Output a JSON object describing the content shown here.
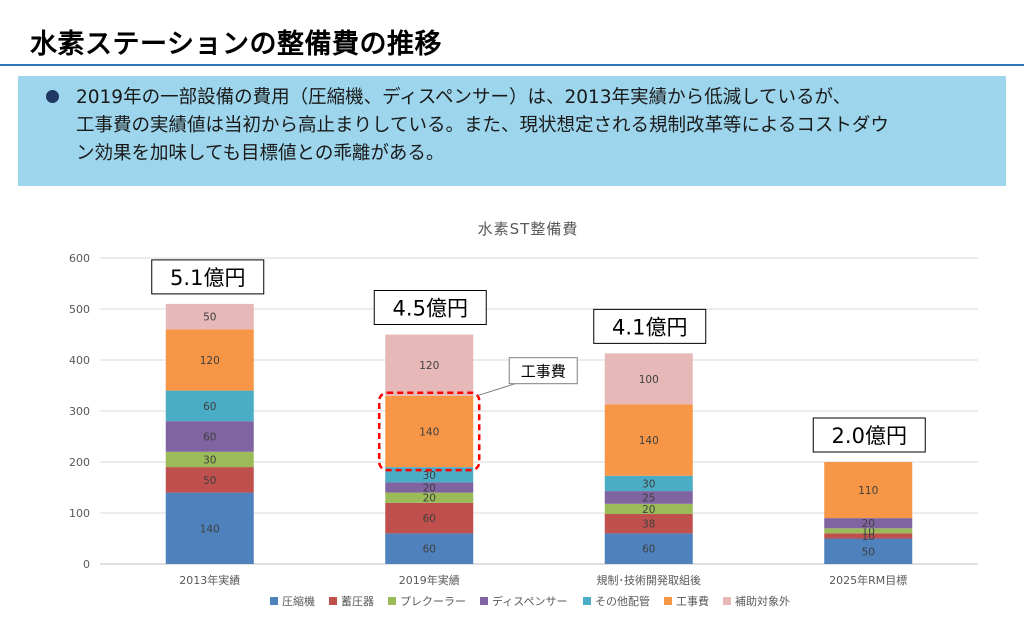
{
  "page": {
    "title": "水素ステーションの整備費の推移",
    "summary_lines": [
      "2019年の一部設備の費用（圧縮機、ディスペンサー）は、2013年実績から低減しているが、",
      "工事費の実績値は当初から高止まりしている。また、現状想定される規制改革等によるコストダウ",
      "ン効果を加味しても目標値との乖離がある。"
    ]
  },
  "chart_data": {
    "type": "bar",
    "stacked": true,
    "title": "水素ST整備費",
    "categories": [
      "2013年実績",
      "2019年実績",
      "規制･技術開発取組後",
      "2025年RM目標"
    ],
    "ylim": [
      0,
      600
    ],
    "yticks": [
      0,
      100,
      200,
      300,
      400,
      500,
      600
    ],
    "grid": true,
    "legend_position": "bottom",
    "series": [
      {
        "name": "圧縮機",
        "color": "#4f81bd",
        "values": [
          140,
          60,
          60,
          50
        ]
      },
      {
        "name": "蓄圧器",
        "color": "#c0504d",
        "values": [
          50,
          60,
          38,
          10
        ]
      },
      {
        "name": "プレクーラー",
        "color": "#9bbb59",
        "values": [
          30,
          20,
          20,
          10
        ]
      },
      {
        "name": "ディスペンサー",
        "color": "#8064a2",
        "values": [
          60,
          20,
          25,
          20
        ]
      },
      {
        "name": "その他配管",
        "color": "#4bacc6",
        "values": [
          60,
          30,
          30,
          0
        ]
      },
      {
        "name": "工事費",
        "color": "#f79646",
        "values": [
          120,
          140,
          140,
          110
        ]
      },
      {
        "name": "補助対象外",
        "color": "#e6b9b8",
        "values": [
          50,
          120,
          100,
          0
        ]
      }
    ],
    "totals": [
      "5.1億円",
      "4.5億円",
      "4.1億円",
      "2.0億円"
    ],
    "annotations": [
      {
        "text": "工事費",
        "target": "2019年実績 工事費"
      }
    ]
  }
}
